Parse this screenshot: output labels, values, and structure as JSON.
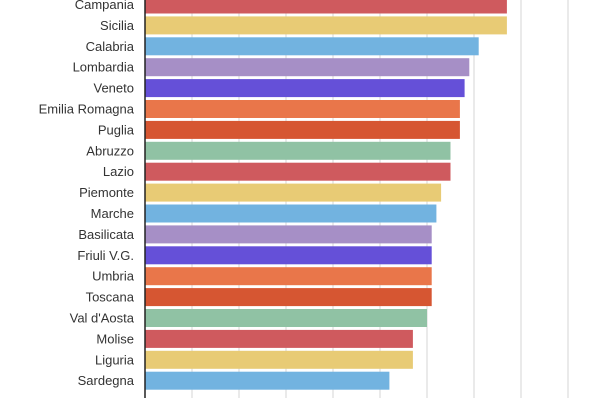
{
  "chart_data": {
    "type": "bar",
    "orientation": "horizontal",
    "categories": [
      "Campania",
      "Sicilia",
      "Calabria",
      "Lombardia",
      "Veneto",
      "Emilia Romagna",
      "Puglia",
      "Abruzzo",
      "Lazio",
      "Piemonte",
      "Marche",
      "Basilicata",
      "Friuli V.G.",
      "Umbria",
      "Toscana",
      "Val d'Aosta",
      "Molise",
      "Liguria",
      "Sardegna"
    ],
    "values": [
      7.7,
      7.7,
      7.1,
      6.9,
      6.8,
      6.7,
      6.7,
      6.5,
      6.5,
      6.3,
      6.2,
      6.1,
      6.1,
      6.1,
      6.1,
      6.0,
      5.7,
      5.7,
      5.2
    ],
    "colors": [
      "#cf5a5e",
      "#e8cb75",
      "#72b3e0",
      "#a68fc6",
      "#6550d8",
      "#e9764a",
      "#d65632",
      "#90c2a4",
      "#cf5a5e",
      "#e8cb75",
      "#72b3e0",
      "#a68fc6",
      "#6550d8",
      "#e9764a",
      "#d65632",
      "#90c2a4",
      "#cf5a5e",
      "#e8cb75",
      "#72b3e0"
    ],
    "xlim": [
      0,
      9
    ],
    "xticks": [
      0,
      1,
      2,
      3,
      4,
      5,
      6,
      7,
      8,
      9
    ],
    "grid": true,
    "title": "",
    "xlabel": "",
    "ylabel": ""
  }
}
